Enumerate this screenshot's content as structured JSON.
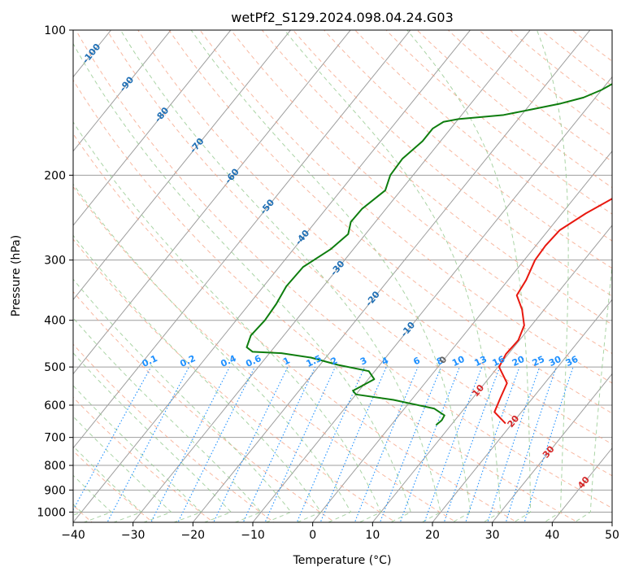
{
  "chart_data": {
    "type": "line",
    "subtype": "skew-t log-p diagram",
    "title": "wetPf2_S129.2024.098.04.24.G03",
    "xlabel": "Temperature (°C)",
    "ylabel": "Pressure (hPa)",
    "xlim": [
      -40,
      50
    ],
    "ylim": [
      1050,
      100
    ],
    "y_scale": "log",
    "grid": true,
    "x_ticks": [
      -40,
      -30,
      -20,
      -10,
      0,
      10,
      20,
      30,
      40,
      50
    ],
    "x_tick_labels": [
      "−40",
      "−30",
      "−20",
      "−10",
      "0",
      "10",
      "20",
      "30",
      "40",
      "50"
    ],
    "y_ticks": [
      100,
      200,
      300,
      400,
      500,
      600,
      700,
      800,
      900,
      1000
    ],
    "y_tick_labels": [
      "100",
      "200",
      "300",
      "400",
      "500",
      "600",
      "700",
      "800",
      "900",
      "1000"
    ],
    "series": [
      {
        "role": "temperature",
        "color": "#e8180f",
        "points": [
          [
            655,
            18.9
          ],
          [
            620,
            15.5
          ],
          [
            580,
            14.6
          ],
          [
            540,
            13.7
          ],
          [
            500,
            10.2
          ],
          [
            470,
            9.6
          ],
          [
            440,
            9.8
          ],
          [
            410,
            8.8
          ],
          [
            380,
            6.3
          ],
          [
            355,
            3.5
          ],
          [
            330,
            3.0
          ],
          [
            300,
            1.8
          ],
          [
            280,
            1.6
          ],
          [
            260,
            1.9
          ],
          [
            240,
            4.0
          ],
          [
            220,
            7.0
          ],
          [
            200,
            8.2
          ],
          [
            180,
            8.4
          ],
          [
            160,
            8.5
          ],
          [
            140,
            9.8
          ],
          [
            120,
            9.4
          ],
          [
            108,
            10.6
          ],
          [
            100,
            12.3
          ]
        ]
      },
      {
        "role": "dewpoint",
        "color": "#0e7d0e",
        "points": [
          [
            660,
            7.5
          ],
          [
            645,
            7.8
          ],
          [
            630,
            7.6
          ],
          [
            610,
            5.0
          ],
          [
            585,
            -3.0
          ],
          [
            570,
            -10.0
          ],
          [
            560,
            -11.0
          ],
          [
            545,
            -10.0
          ],
          [
            530,
            -9.0
          ],
          [
            510,
            -11.0
          ],
          [
            495,
            -17.0
          ],
          [
            478,
            -22.5
          ],
          [
            468,
            -28.0
          ],
          [
            465,
            -33.0
          ],
          [
            455,
            -34.6
          ],
          [
            430,
            -35.5
          ],
          [
            400,
            -35.2
          ],
          [
            370,
            -35.5
          ],
          [
            340,
            -36.2
          ],
          [
            310,
            -36.0
          ],
          [
            285,
            -33.8
          ],
          [
            265,
            -32.9
          ],
          [
            250,
            -34.1
          ],
          [
            235,
            -34.0
          ],
          [
            215,
            -32.6
          ],
          [
            200,
            -33.8
          ],
          [
            185,
            -34.0
          ],
          [
            170,
            -33.0
          ],
          [
            160,
            -33.0
          ],
          [
            155,
            -32.1
          ],
          [
            153,
            -30.0
          ],
          [
            150,
            -23.0
          ],
          [
            146,
            -19.0
          ],
          [
            142,
            -15.0
          ],
          [
            138,
            -12.0
          ],
          [
            133,
            -10.0
          ],
          [
            127,
            -8.4
          ],
          [
            120,
            -7.5
          ],
          [
            113,
            -7.0
          ],
          [
            105,
            -5.0
          ],
          [
            100,
            -3.3
          ]
        ]
      }
    ],
    "dry_adiabats": {
      "labels": [
        "-100",
        "-90",
        "-80",
        "-70",
        "-60",
        "-50",
        "-40",
        "-30",
        "-20",
        "-10",
        "0",
        "10",
        "20",
        "30",
        "40"
      ],
      "color_cold": "#1f6fb5",
      "color_warm": "#d62728",
      "color_zero": "#666666"
    },
    "mixing_ratio_lines": {
      "labels": [
        "0.1",
        "0.2",
        "0.4",
        "0.6",
        "1",
        "1.5",
        "2",
        "3",
        "4",
        "6",
        "8",
        "10",
        "13",
        "16",
        "20",
        "25",
        "30",
        "36"
      ],
      "color": "#1e90ff"
    },
    "colors": {
      "isotherm": "#9e9e9e",
      "dry_adiabat_line": "#f5a081",
      "moist_adiabat_line": "#95c98e",
      "axis": "#000000"
    }
  }
}
